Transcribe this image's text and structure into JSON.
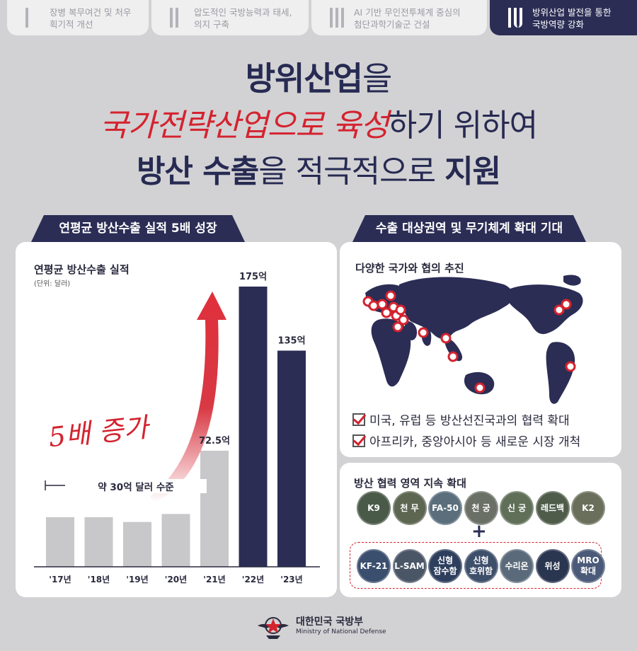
{
  "tabs": [
    {
      "line1": "장병 복무여건 및 처우",
      "line2": "획기적 개선"
    },
    {
      "line1": "압도적인 국방능력과 태세,",
      "line2": "의지 구축"
    },
    {
      "line1": "AI 기반 무인전투체계 중심의",
      "line2": "첨단과학기술군 건설"
    },
    {
      "line1": "방위산업 발전을 통한",
      "line2": "국방역량 강화"
    }
  ],
  "headline": {
    "l1_bold": "방위산업",
    "l1_rest": "을",
    "l2_script": "국가전략산업으로 육성",
    "l2_rest": "하기 위하여",
    "l3_bold1": "방산 수출",
    "l3_mid": "을 적극적으로 ",
    "l3_bold2": "지원"
  },
  "left_section": {
    "header": "연평균 방산수출 실적 5배 성장",
    "chart_title": "연평균 방산수출 실적",
    "chart_unit": "(단위: 달러)",
    "growth_label": "5배 증가",
    "range_label": "약 30억 달러 수준"
  },
  "chart_data": {
    "type": "bar",
    "title": "연평균 방산수출 실적",
    "ylabel": "(단위: 달러)",
    "categories": [
      "'17년",
      "'18년",
      "'19년",
      "'20년",
      "'21년",
      "'22년",
      "'23년"
    ],
    "values": [
      31,
      31,
      28,
      33,
      72.5,
      175,
      135
    ],
    "value_labels": [
      "",
      "",
      "",
      "",
      "72.5억",
      "175억",
      "135억"
    ],
    "colors": [
      "#c8c8ca",
      "#c8c8ca",
      "#c8c8ca",
      "#c8c8ca",
      "#c8c8ca",
      "#2b2d55",
      "#2b2d55"
    ],
    "ylim": [
      0,
      175
    ],
    "grid": false,
    "annotations": [
      "5배 증가",
      "약 30억 달러 수준"
    ]
  },
  "right_section": {
    "header": "수출 대상권역 및 무기체계 확대 기대",
    "map_title": "다양한 국가와 협의 추진",
    "checks": [
      "미국, 유럽 등 방산선진국과의 협력 확대",
      "아프리카, 중앙아시아 등 새로운 시장 개척"
    ],
    "coop_title": "방산 협력 영역 지속 확대",
    "existing": [
      "K9",
      "천 무",
      "FA-50",
      "천 궁",
      "신 궁",
      "레드백",
      "K2"
    ],
    "new": [
      "KF-21",
      "L-SAM",
      "신형|잠수함",
      "신형|호위함",
      "수리온",
      "위성",
      "MRO|확대"
    ]
  },
  "colors": {
    "navy": "#2b2d55",
    "red": "#d4232f",
    "gray_bar": "#c8c8ca",
    "background": "#d2d2d4"
  },
  "footer": {
    "ministry_ko": "대한민국 국방부",
    "ministry_en": "Ministry of National Defense"
  }
}
